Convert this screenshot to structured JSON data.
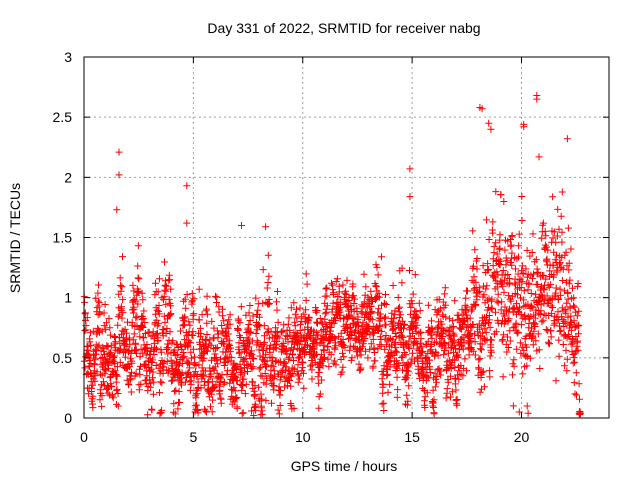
{
  "chart_data": {
    "type": "scatter",
    "title": "Day 331 of 2022, SRMTID for receiver nabg",
    "xlabel": "GPS time / hours",
    "ylabel": "SRMTID / TECUs",
    "xlim": [
      0,
      24
    ],
    "ylim": [
      0,
      3
    ],
    "x_ticks": [
      0,
      5,
      10,
      15,
      20
    ],
    "x_tick_labels": [
      "0",
      "5",
      "10",
      "15",
      "20"
    ],
    "y_ticks": [
      0,
      0.5,
      1,
      1.5,
      2,
      2.5,
      3
    ],
    "y_tick_labels": [
      "0",
      "0.5",
      "1",
      "1.5",
      "2",
      "2.5",
      "3"
    ],
    "grid": true,
    "marker": "+",
    "color": "#ff0000",
    "x_range_data": [
      0,
      22.7
    ],
    "envelope": {
      "x": [
        0,
        1,
        2,
        3,
        4,
        5,
        6,
        7,
        8,
        9,
        10,
        11,
        12,
        13,
        14,
        15,
        16,
        17,
        18,
        19,
        20,
        21,
        22,
        22.7
      ],
      "baseline": [
        0.55,
        0.5,
        0.6,
        0.7,
        0.55,
        0.5,
        0.5,
        0.5,
        0.55,
        0.55,
        0.6,
        0.65,
        0.7,
        0.65,
        0.6,
        0.65,
        0.45,
        0.6,
        1.0,
        1.05,
        0.8,
        1.0,
        1.05,
        0.5
      ],
      "spread": [
        0.3,
        0.25,
        0.3,
        0.3,
        0.3,
        0.3,
        0.3,
        0.3,
        0.3,
        0.3,
        0.25,
        0.25,
        0.25,
        0.25,
        0.25,
        0.3,
        0.25,
        0.3,
        0.45,
        0.45,
        0.55,
        0.5,
        0.45,
        0.25
      ]
    },
    "highlights": [
      {
        "x": 1.6,
        "y": 2.21
      },
      {
        "x": 1.6,
        "y": 2.02
      },
      {
        "x": 1.5,
        "y": 1.73
      },
      {
        "x": 4.7,
        "y": 1.93
      },
      {
        "x": 4.7,
        "y": 1.62
      },
      {
        "x": 7.2,
        "y": 1.6
      },
      {
        "x": 8.3,
        "y": 1.59
      },
      {
        "x": 14.9,
        "y": 1.84
      },
      {
        "x": 14.9,
        "y": 2.07
      },
      {
        "x": 18.1,
        "y": 2.58
      },
      {
        "x": 18.2,
        "y": 2.57
      },
      {
        "x": 18.5,
        "y": 2.45
      },
      {
        "x": 18.6,
        "y": 2.4
      },
      {
        "x": 20.1,
        "y": 2.44
      },
      {
        "x": 20.1,
        "y": 2.42
      },
      {
        "x": 20.7,
        "y": 2.68
      },
      {
        "x": 20.7,
        "y": 2.65
      },
      {
        "x": 20.8,
        "y": 2.17
      },
      {
        "x": 22.1,
        "y": 2.32
      },
      {
        "x": 19.9,
        "y": 0.05
      },
      {
        "x": 20.3,
        "y": 0.04
      },
      {
        "x": 14.8,
        "y": 0.14
      },
      {
        "x": 9.6,
        "y": 0.08
      },
      {
        "x": 5.6,
        "y": 0.05
      }
    ],
    "n_points": 2600,
    "seed": 331
  }
}
